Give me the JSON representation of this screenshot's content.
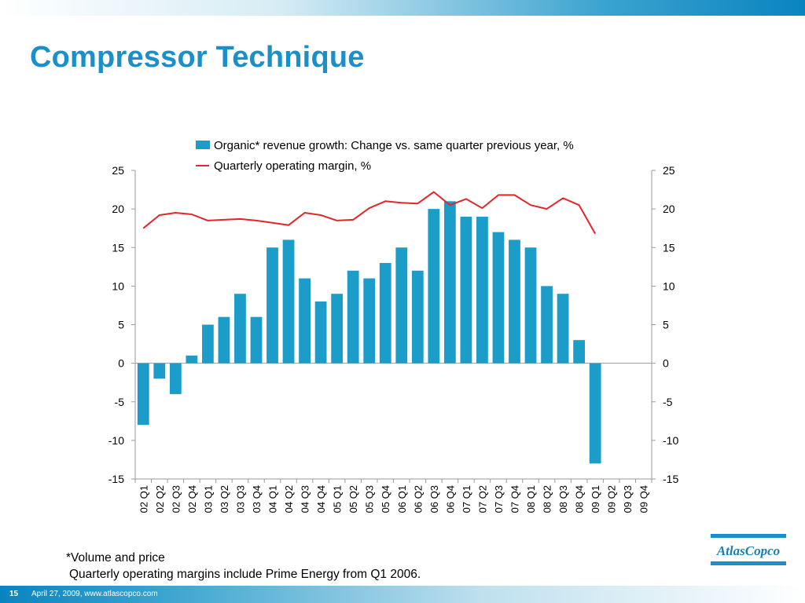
{
  "slide": {
    "title": "Compressor Technique",
    "footnote_1": "*Volume and price",
    "footnote_2": "Quarterly operating margins include Prime Energy from Q1 2006.",
    "page_number": "15",
    "footer_text": "April 27, 2009, www.atlascopco.com",
    "logo_text": "AtlasCopco"
  },
  "colors": {
    "accent": "#1a8fc9",
    "bar": "#1b9cc9",
    "line": "#e3262a"
  },
  "chart_data": {
    "type": "bar",
    "categories": [
      "02 Q1",
      "02 Q2",
      "02 Q3",
      "02 Q4",
      "03 Q1",
      "03 Q2",
      "03 Q3",
      "03 Q4",
      "04 Q1",
      "04 Q2",
      "04 Q3",
      "04 Q4",
      "05 Q1",
      "05 Q2",
      "05 Q3",
      "05 Q4",
      "06 Q1",
      "06 Q2",
      "06 Q3",
      "06 Q4",
      "07 Q1",
      "07 Q2",
      "07 Q3",
      "07 Q4",
      "08 Q1",
      "08 Q2",
      "08 Q3",
      "08 Q4",
      "09 Q1",
      "09 Q2",
      "09 Q3",
      "09 Q4"
    ],
    "series": [
      {
        "name": "Organic* revenue growth: Change vs. same quarter previous year, %",
        "type": "bar",
        "values": [
          -8,
          -2,
          -4,
          1,
          5,
          6,
          9,
          6,
          15,
          16,
          11,
          8,
          9,
          12,
          11,
          13,
          15,
          12,
          20,
          21,
          19,
          19,
          17,
          16,
          15,
          10,
          9,
          3,
          -13,
          null,
          null,
          null
        ]
      },
      {
        "name": "Quarterly operating margin, %",
        "type": "line",
        "values": [
          17.5,
          19.2,
          19.5,
          19.3,
          18.5,
          18.6,
          18.7,
          18.5,
          18.2,
          17.9,
          19.5,
          19.2,
          18.5,
          18.6,
          20.1,
          21.0,
          20.8,
          20.7,
          22.2,
          20.5,
          21.3,
          20.1,
          21.8,
          21.8,
          20.5,
          20.0,
          21.4,
          20.5,
          16.8,
          null,
          null,
          null
        ]
      }
    ],
    "ylim": [
      -15,
      25
    ],
    "yticks": [
      -15,
      -10,
      -5,
      0,
      5,
      10,
      15,
      20,
      25
    ],
    "y2lim": [
      -15,
      25
    ],
    "legend_position": "top",
    "grid": false
  }
}
